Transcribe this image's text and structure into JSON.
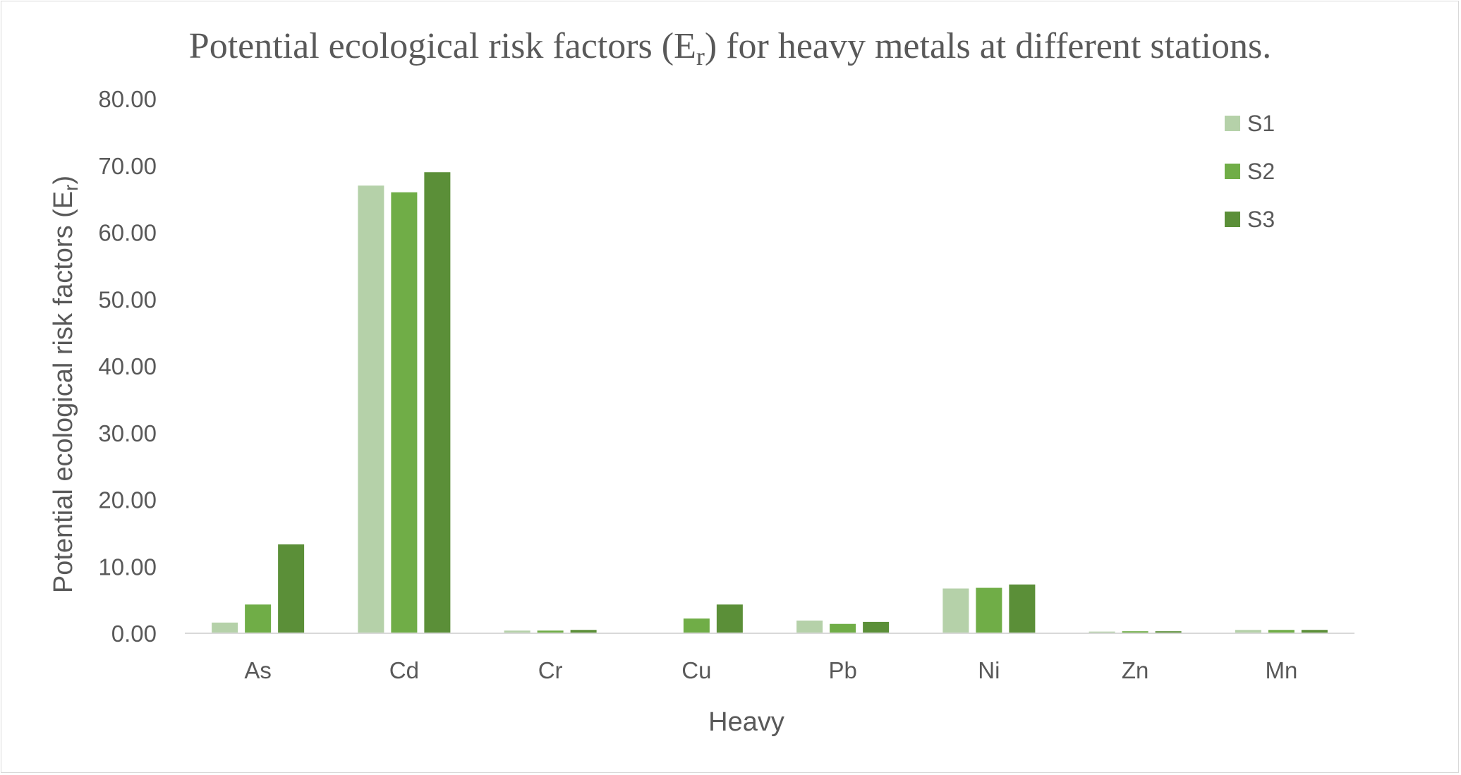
{
  "chart_data": {
    "type": "bar",
    "title": {
      "prefix": "Potential ecological risk factors (E",
      "subscript": "r",
      "suffix": ") for heavy metals at different stations."
    },
    "xlabel": "Heavy",
    "ylabel": {
      "prefix": "Potential ecological risk factors (E",
      "subscript": "r",
      "suffix": ")"
    },
    "ylim": [
      0,
      80
    ],
    "yticks": [
      "0.00",
      "10.00",
      "20.00",
      "30.00",
      "40.00",
      "50.00",
      "60.00",
      "70.00",
      "80.00"
    ],
    "categories": [
      "As",
      "Cd",
      "Cr",
      "Cu",
      "Pb",
      "Ni",
      "Zn",
      "Mn"
    ],
    "series": [
      {
        "name": "S1",
        "color": "#b5d1a9",
        "values": [
          1.6,
          67.0,
          0.4,
          0.0,
          1.9,
          6.7,
          0.25,
          0.5
        ]
      },
      {
        "name": "S2",
        "color": "#70ad47",
        "values": [
          4.3,
          66.0,
          0.4,
          2.2,
          1.4,
          6.8,
          0.3,
          0.5
        ]
      },
      {
        "name": "S3",
        "color": "#5b8f38",
        "values": [
          13.3,
          69.0,
          0.5,
          4.3,
          1.7,
          7.3,
          0.3,
          0.5
        ]
      }
    ],
    "legend_position": "top-right",
    "grid": false
  }
}
